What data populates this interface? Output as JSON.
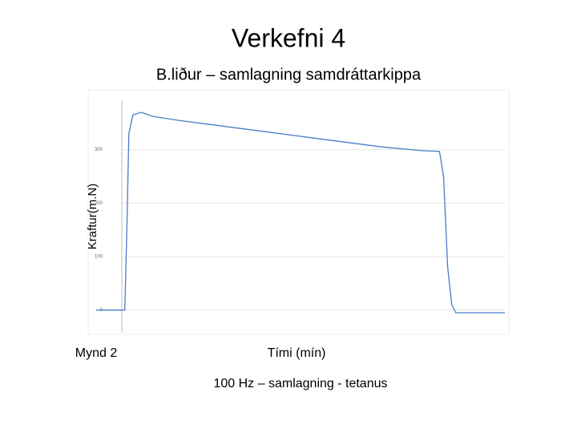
{
  "title": "Verkefni 4",
  "subtitle": "B.liður – samlagning samdráttarkippa",
  "figure_label": "Mynd 2",
  "caption": "100 Hz – samlagning - tetanus",
  "chart_data": {
    "type": "line",
    "ylabel": "Kraftur(m.N)",
    "xlabel": "Tími (mín)",
    "x": [
      0,
      7,
      7.5,
      8,
      9,
      11,
      14,
      20,
      30,
      40,
      50,
      60,
      70,
      80,
      84,
      85,
      86,
      87,
      88,
      95,
      100
    ],
    "series": [
      {
        "name": "Kraftur",
        "color": "#4a7cc7",
        "values": [
          0,
          0,
          150,
          330,
          365,
          370,
          362,
          355,
          345,
          335,
          325,
          315,
          305,
          298,
          297,
          250,
          80,
          10,
          -5,
          -5,
          -5
        ]
      }
    ],
    "xlim": [
      0,
      100
    ],
    "ylim": [
      -20,
      400
    ],
    "yticks": [
      0,
      100,
      200,
      300
    ],
    "grid": true
  }
}
